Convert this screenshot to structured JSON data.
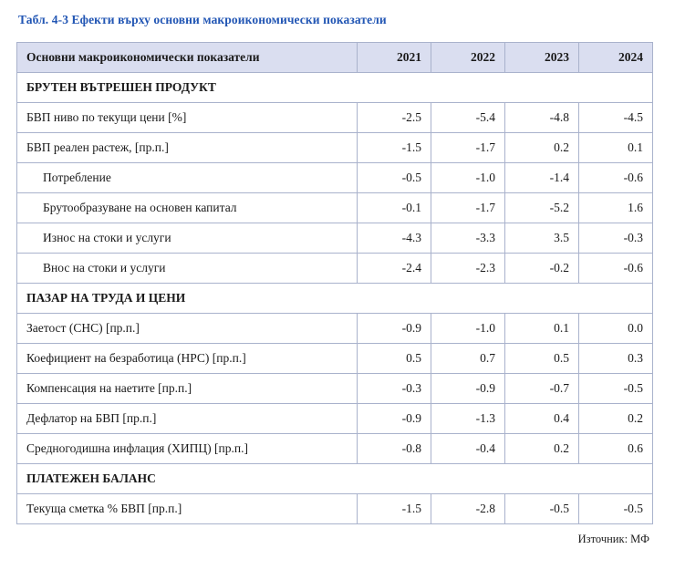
{
  "title": "Табл. 4-3 Ефекти върху основни макроикономически показатели",
  "source": "Източник: МФ",
  "colors": {
    "caption_blue": "#2256b4",
    "header_bg": "#dadef0",
    "border": "#a9b2cc"
  },
  "table": {
    "header": [
      "Основни макроикономически показатели",
      "2021",
      "2022",
      "2023",
      "2024"
    ],
    "rows": [
      {
        "type": "section",
        "label": "БРУТЕН ВЪТРЕШЕН ПРОДУКТ"
      },
      {
        "type": "data",
        "indent": 0,
        "label": "БВП ниво по текущи цени [%]",
        "values": [
          "-2.5",
          "-5.4",
          "-4.8",
          "-4.5"
        ]
      },
      {
        "type": "data",
        "indent": 0,
        "label": "БВП реален растеж, [пр.п.]",
        "values": [
          "-1.5",
          "-1.7",
          "0.2",
          "0.1"
        ]
      },
      {
        "type": "data",
        "indent": 1,
        "label": "Потребление",
        "values": [
          "-0.5",
          "-1.0",
          "-1.4",
          "-0.6"
        ]
      },
      {
        "type": "data",
        "indent": 1,
        "label": "Брутообразуване на основен капитал",
        "values": [
          "-0.1",
          "-1.7",
          "-5.2",
          "1.6"
        ]
      },
      {
        "type": "data",
        "indent": 1,
        "label": "Износ на стоки и услуги",
        "values": [
          "-4.3",
          "-3.3",
          "3.5",
          "-0.3"
        ]
      },
      {
        "type": "data",
        "indent": 1,
        "label": "Внос на стоки и услуги",
        "values": [
          "-2.4",
          "-2.3",
          "-0.2",
          "-0.6"
        ]
      },
      {
        "type": "section",
        "label": "ПАЗАР НА ТРУДА И ЦЕНИ"
      },
      {
        "type": "data",
        "indent": 0,
        "label": "Заетост (СНС) [пр.п.]",
        "values": [
          "-0.9",
          "-1.0",
          "0.1",
          "0.0"
        ]
      },
      {
        "type": "data",
        "indent": 0,
        "label": "Коефициент на безработица (НРС) [пр.п.]",
        "values": [
          "0.5",
          "0.7",
          "0.5",
          "0.3"
        ]
      },
      {
        "type": "data",
        "indent": 0,
        "label": "Компенсация на наетите [пр.п.]",
        "values": [
          "-0.3",
          "-0.9",
          "-0.7",
          "-0.5"
        ]
      },
      {
        "type": "data",
        "indent": 0,
        "label": "Дефлатор на БВП [пр.п.]",
        "values": [
          "-0.9",
          "-1.3",
          "0.4",
          "0.2"
        ]
      },
      {
        "type": "data",
        "indent": 0,
        "label": "Средногодишна инфлация (ХИПЦ) [пр.п.]",
        "values": [
          "-0.8",
          "-0.4",
          "0.2",
          "0.6"
        ]
      },
      {
        "type": "section",
        "label": "ПЛАТЕЖЕН БАЛАНС"
      },
      {
        "type": "data",
        "indent": 0,
        "label": "Текуща сметка % БВП [пр.п.]",
        "values": [
          "-1.5",
          "-2.8",
          "-0.5",
          "-0.5"
        ]
      }
    ]
  }
}
